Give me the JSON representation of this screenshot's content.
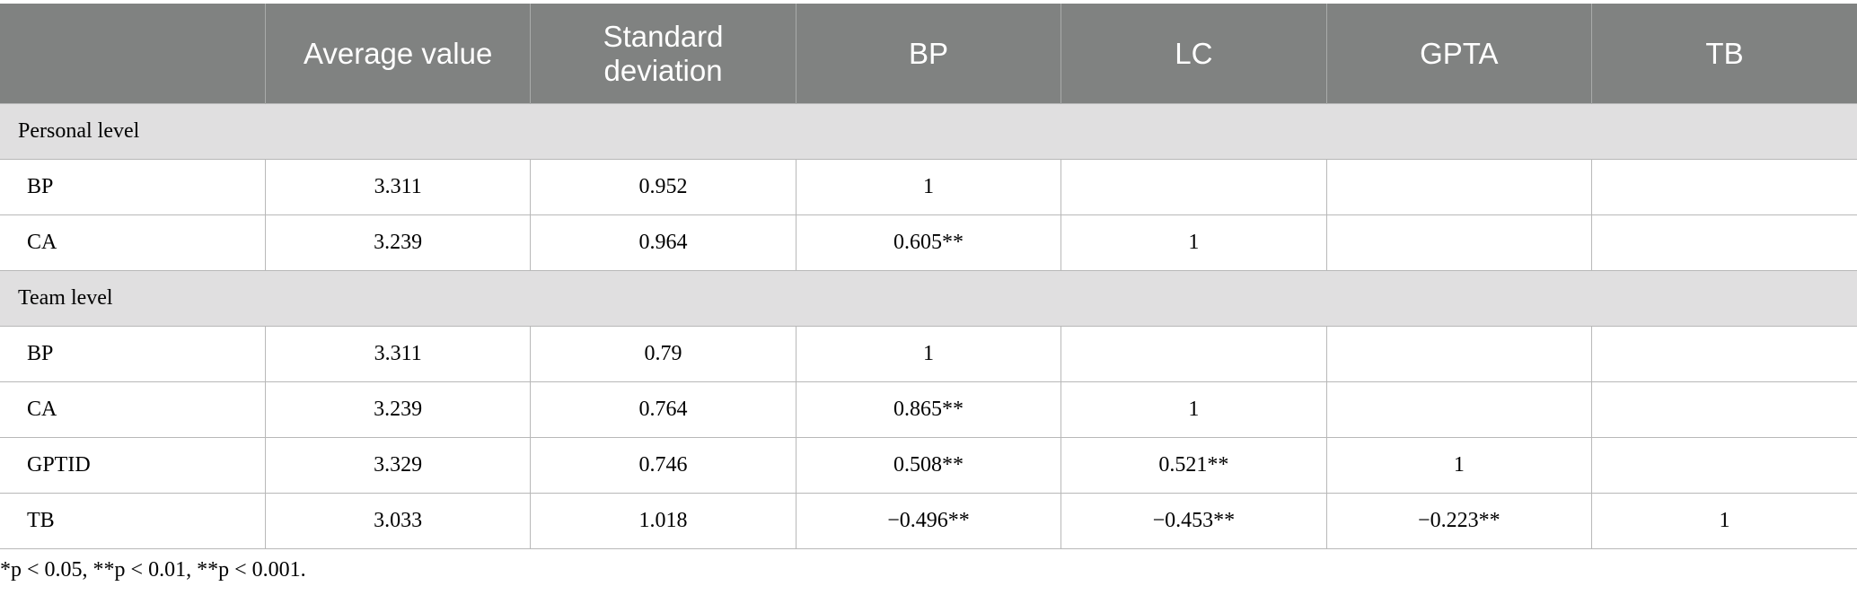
{
  "table": {
    "header": [
      "Average value",
      "Standard deviation",
      "BP",
      "LC",
      "GPTA",
      "TB"
    ],
    "sections": [
      {
        "title": "Personal level",
        "rows": [
          [
            "BP",
            "3.311",
            "0.952",
            "1"
          ],
          [
            "CA",
            "3.239",
            "0.964",
            "0.605**",
            "1"
          ]
        ]
      },
      {
        "title": "Team level",
        "rows": [
          [
            "BP",
            "3.311",
            "0.79",
            "1"
          ],
          [
            "CA",
            "3.239",
            "0.764",
            "0.865**",
            "1"
          ],
          [
            "GPTID",
            "3.329",
            "0.746",
            "0.508**",
            "0.521**",
            "1"
          ],
          [
            "TB",
            "3.033",
            "1.018",
            "−0.496**",
            "−0.453**",
            "−0.223**",
            "1"
          ]
        ]
      }
    ],
    "footnote": "*p < 0.05, **p < 0.01, **p < 0.001."
  }
}
